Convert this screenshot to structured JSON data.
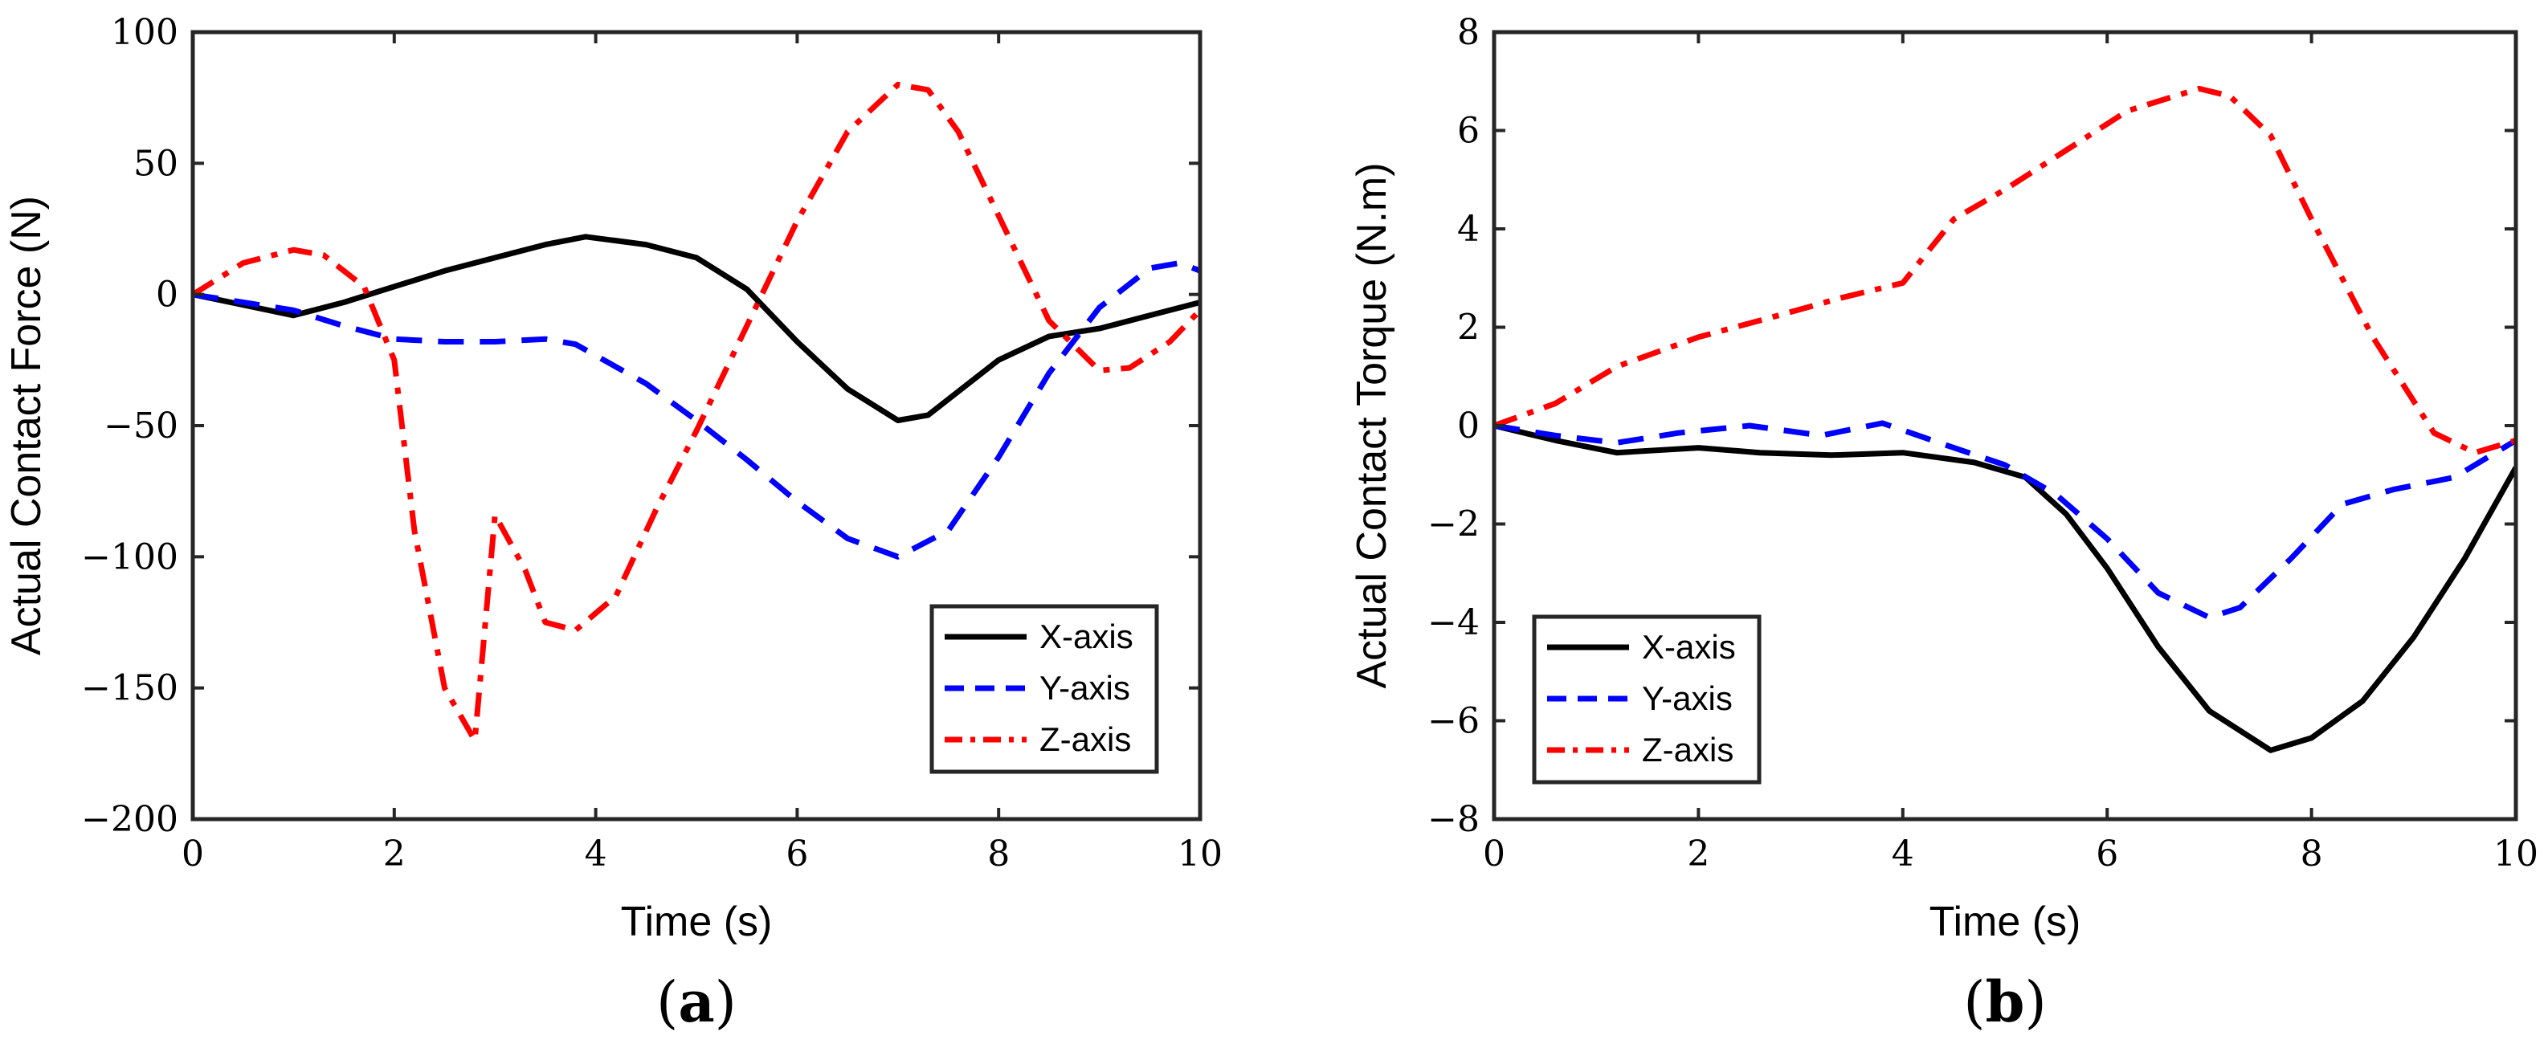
{
  "chart_data": [
    {
      "type": "line",
      "panel": "a",
      "panel_label": "(a)",
      "panel_label_open": "(",
      "panel_label_letter": "a",
      "panel_label_close": ")",
      "title": "",
      "xlabel": "Time (s)",
      "ylabel": "Actual Contact Force (N)",
      "xlim": [
        0,
        10
      ],
      "ylim": [
        -200,
        100
      ],
      "xticks": [
        0,
        2,
        4,
        6,
        8,
        10
      ],
      "yticks": [
        -200,
        -150,
        -100,
        -50,
        0,
        50,
        100
      ],
      "xtick_labels": [
        "0",
        "2",
        "4",
        "6",
        "8",
        "10"
      ],
      "ytick_labels": [
        "−200",
        "−150",
        "−100",
        "−50",
        "0",
        "50",
        "100"
      ],
      "grid": false,
      "legend_position": "bottom-right",
      "series": [
        {
          "name": "X-axis",
          "color": "#000000",
          "style": "solid",
          "x": [
            0,
            0.5,
            1.0,
            1.5,
            2.0,
            2.5,
            3.0,
            3.5,
            3.9,
            4.5,
            5.0,
            5.5,
            6.0,
            6.5,
            7.0,
            7.3,
            7.5,
            8.0,
            8.5,
            9.0,
            9.5,
            10.0
          ],
          "y": [
            0,
            -4,
            -8,
            -3,
            3,
            9,
            14,
            19,
            22,
            19,
            14,
            2,
            -18,
            -36,
            -48,
            -46,
            -40,
            -25,
            -16,
            -13,
            -8,
            -3
          ]
        },
        {
          "name": "Y-axis",
          "color": "#0000ff",
          "style": "dashed",
          "x": [
            0,
            0.5,
            1.0,
            1.5,
            2.0,
            2.5,
            3.0,
            3.5,
            3.8,
            4.5,
            5.0,
            5.5,
            6.0,
            6.5,
            7.0,
            7.5,
            8.0,
            8.5,
            9.0,
            9.5,
            9.8,
            10.0
          ],
          "y": [
            0,
            -3,
            -6,
            -12,
            -17,
            -18,
            -18,
            -17,
            -19,
            -34,
            -48,
            -63,
            -79,
            -93,
            -100,
            -90,
            -62,
            -30,
            -5,
            10,
            12,
            9
          ]
        },
        {
          "name": "Z-axis",
          "color": "#ff0000",
          "style": "dashdot",
          "x": [
            0,
            0.5,
            1.0,
            1.3,
            1.7,
            2.0,
            2.2,
            2.5,
            2.8,
            3.0,
            3.3,
            3.5,
            3.8,
            4.2,
            4.6,
            5.0,
            5.5,
            6.0,
            6.5,
            7.0,
            7.3,
            7.6,
            8.0,
            8.5,
            9.0,
            9.3,
            9.7,
            10.0
          ],
          "y": [
            0,
            12,
            17,
            15,
            3,
            -25,
            -90,
            -150,
            -170,
            -84,
            -105,
            -125,
            -128,
            -115,
            -82,
            -52,
            -12,
            28,
            62,
            80,
            78,
            62,
            30,
            -10,
            -29,
            -28,
            -18,
            -6
          ]
        }
      ]
    },
    {
      "type": "line",
      "panel": "b",
      "panel_label": "(b)",
      "panel_label_open": "(",
      "panel_label_letter": "b",
      "panel_label_close": ")",
      "title": "",
      "xlabel": "Time (s)",
      "ylabel": "Actual Contact Torque (N.m)",
      "xlim": [
        0,
        10
      ],
      "ylim": [
        -8,
        8
      ],
      "xticks": [
        0,
        2,
        4,
        6,
        8,
        10
      ],
      "yticks": [
        -8,
        -6,
        -4,
        -2,
        0,
        2,
        4,
        6,
        8
      ],
      "xtick_labels": [
        "0",
        "2",
        "4",
        "6",
        "8",
        "10"
      ],
      "ytick_labels": [
        "−8",
        "−6",
        "−4",
        "−2",
        "0",
        "2",
        "4",
        "6",
        "8"
      ],
      "grid": false,
      "legend_position": "bottom-left",
      "series": [
        {
          "name": "X-axis",
          "color": "#000000",
          "style": "solid",
          "x": [
            0,
            0.6,
            1.2,
            2.0,
            2.6,
            3.3,
            4.0,
            4.7,
            5.2,
            5.6,
            6.0,
            6.5,
            7.0,
            7.6,
            8.0,
            8.5,
            9.0,
            9.5,
            10.0
          ],
          "y": [
            0,
            -0.3,
            -0.55,
            -0.45,
            -0.55,
            -0.6,
            -0.55,
            -0.75,
            -1.05,
            -1.8,
            -2.9,
            -4.5,
            -5.8,
            -6.6,
            -6.35,
            -5.6,
            -4.3,
            -2.7,
            -0.85
          ]
        },
        {
          "name": "Y-axis",
          "color": "#0000ff",
          "style": "dashed",
          "x": [
            0,
            0.6,
            1.2,
            1.8,
            2.5,
            3.2,
            3.8,
            4.5,
            5.0,
            5.5,
            6.0,
            6.5,
            7.0,
            7.3,
            7.8,
            8.3,
            8.8,
            9.4,
            10.0
          ],
          "y": [
            0,
            -0.2,
            -0.35,
            -0.15,
            0.0,
            -0.2,
            0.05,
            -0.45,
            -0.8,
            -1.4,
            -2.3,
            -3.4,
            -3.9,
            -3.7,
            -2.7,
            -1.6,
            -1.3,
            -1.05,
            -0.3
          ]
        },
        {
          "name": "Z-axis",
          "color": "#ff0000",
          "style": "dashdot",
          "x": [
            0,
            0.6,
            1.2,
            2.0,
            2.8,
            3.4,
            4.0,
            4.5,
            5.0,
            5.6,
            6.2,
            6.9,
            7.2,
            7.6,
            8.0,
            8.6,
            9.2,
            9.6,
            10.0
          ],
          "y": [
            0,
            0.45,
            1.2,
            1.8,
            2.25,
            2.6,
            2.9,
            4.2,
            4.8,
            5.6,
            6.4,
            6.85,
            6.7,
            5.9,
            4.2,
            1.8,
            -0.15,
            -0.55,
            -0.3
          ]
        }
      ]
    }
  ]
}
